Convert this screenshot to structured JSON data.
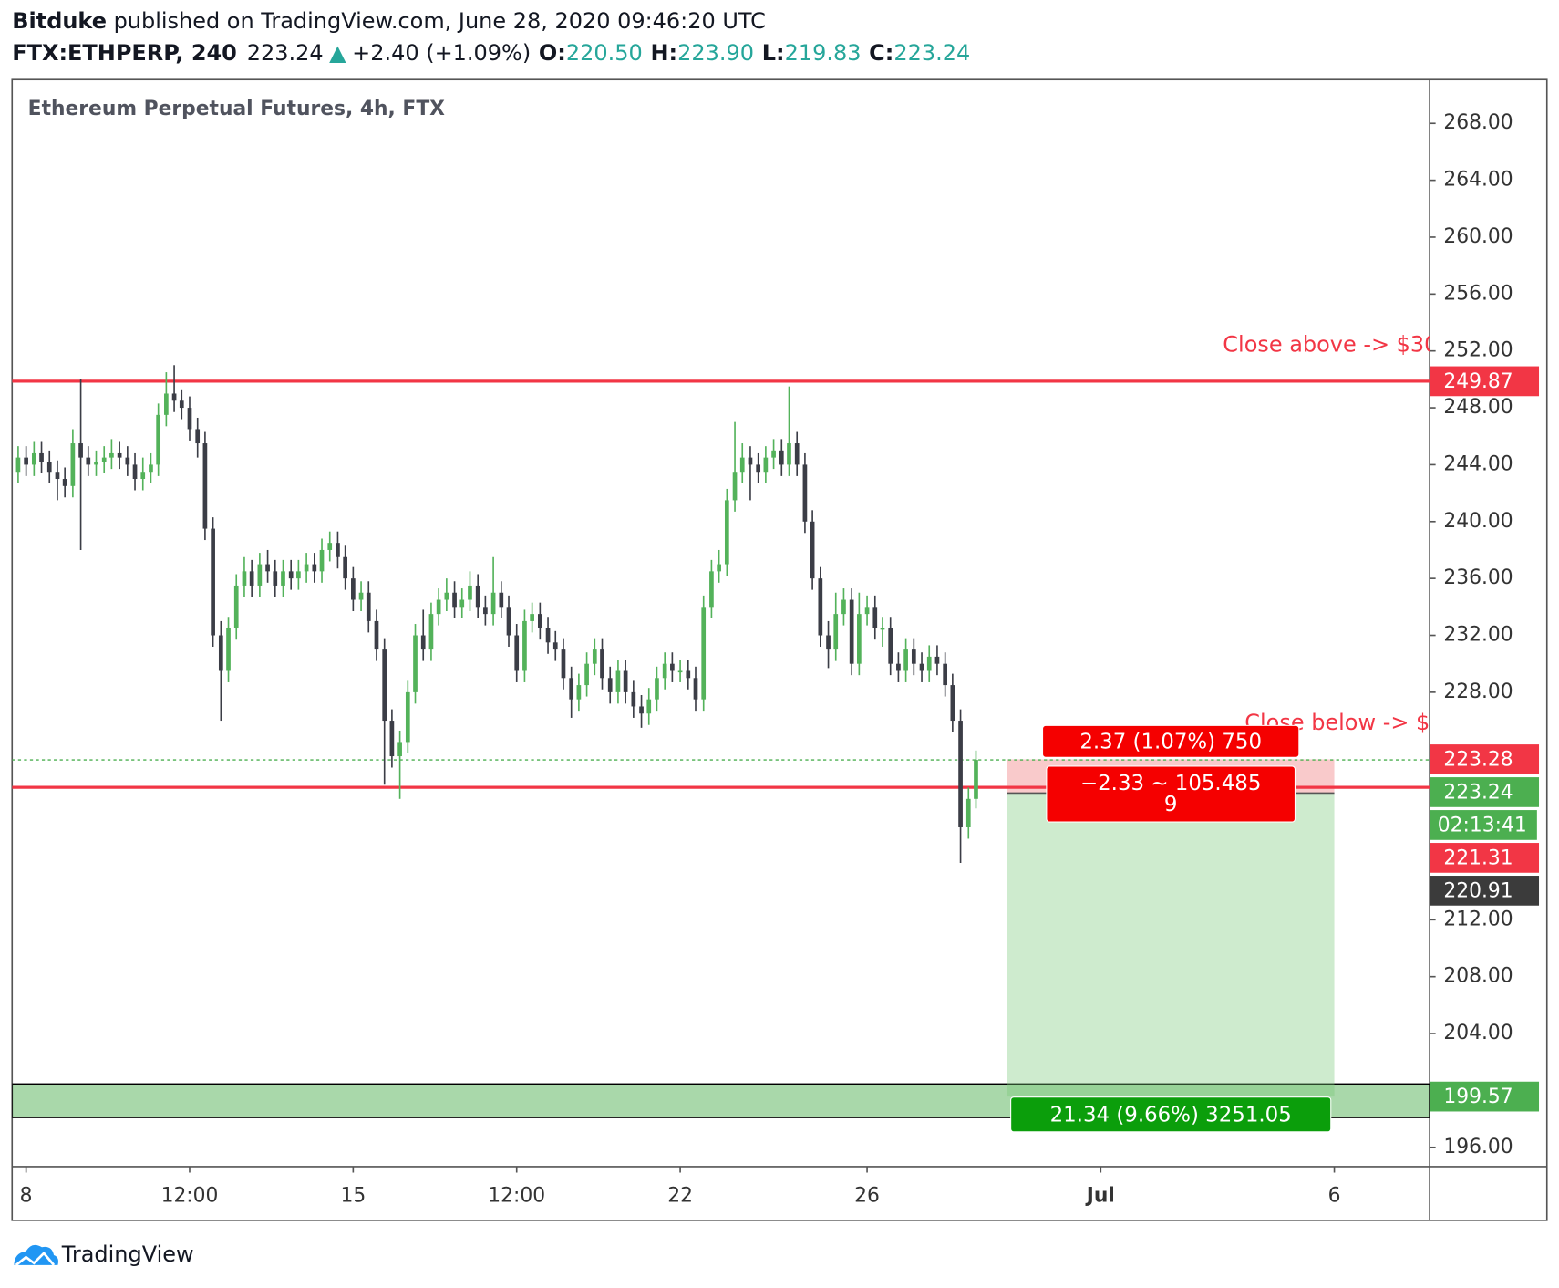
{
  "header": {
    "author": "Bitduke",
    "published": "published on TradingView.com, June 28, 2020 09:46:20 UTC",
    "symbol": "FTX:ETHPERP, 240",
    "last": "223.24",
    "arrow": "▲",
    "change": "+2.40 (+1.09%)",
    "o_label": "O:",
    "o": "220.50",
    "h_label": "H:",
    "h": "223.90",
    "l_label": "L:",
    "l": "219.83",
    "c_label": "C:",
    "c": "223.24"
  },
  "footer": "TradingView",
  "chart_data": {
    "type": "candlestick",
    "title": "Ethereum Perpetual Futures, 4h, FTX",
    "up_color": "#53b25a",
    "down_color": "#3b3d46",
    "x": [
      7.83,
      8,
      8.17,
      8.33,
      8.5,
      8.67,
      8.83,
      9,
      9.17,
      9.33,
      9.5,
      9.67,
      9.83,
      10,
      10.17,
      10.33,
      10.5,
      10.67,
      10.83,
      11,
      11.17,
      11.33,
      11.5,
      11.67,
      11.83,
      12,
      12.17,
      12.33,
      12.5,
      12.67,
      12.83,
      13,
      13.17,
      13.33,
      13.5,
      13.67,
      13.83,
      14,
      14.17,
      14.33,
      14.5,
      14.67,
      14.83,
      15,
      15.17,
      15.33,
      15.5,
      15.67,
      15.83,
      16,
      16.17,
      16.33,
      16.5,
      16.67,
      16.83,
      17,
      17.17,
      17.33,
      17.5,
      17.67,
      17.83,
      18,
      18.17,
      18.33,
      18.5,
      18.67,
      18.83,
      19,
      19.17,
      19.33,
      19.5,
      19.67,
      19.83,
      20,
      20.17,
      20.33,
      20.5,
      20.67,
      20.83,
      21,
      21.17,
      21.33,
      21.5,
      21.67,
      21.83,
      22,
      22.17,
      22.33,
      22.5,
      22.67,
      22.83,
      23,
      23.17,
      23.33,
      23.5,
      23.67,
      23.83,
      24,
      24.17,
      24.33,
      24.5,
      24.67,
      24.83,
      25,
      25.17,
      25.33,
      25.5,
      25.67,
      25.83,
      26,
      26.17,
      26.33,
      26.5,
      26.67,
      26.83,
      27,
      27.17,
      27.33,
      27.5,
      27.67,
      27.83,
      28,
      28.17,
      28.33
    ],
    "open": [
      243.5,
      244.5,
      244,
      244.8,
      244.2,
      243.5,
      243,
      242.5,
      245.5,
      244.5,
      244,
      244.2,
      244.5,
      244.8,
      244.5,
      244,
      243,
      243.5,
      244,
      247.5,
      249,
      248.5,
      248,
      246.5,
      245.5,
      239.5,
      232,
      229.5,
      232.5,
      235.5,
      236.5,
      235.5,
      237,
      236.5,
      235.5,
      236.5,
      236,
      236.5,
      237,
      236.5,
      238,
      238.5,
      237.5,
      236,
      234.5,
      235,
      233,
      231,
      226,
      223.5,
      224.5,
      228,
      232,
      231,
      233.5,
      234.5,
      235,
      234,
      234.5,
      235.5,
      234,
      233.5,
      235,
      234,
      232,
      229.5,
      233,
      233.5,
      232.5,
      231.5,
      231,
      229,
      227.5,
      228.5,
      230,
      231,
      229,
      228,
      229.5,
      228,
      227,
      226.5,
      227.5,
      229,
      230,
      229.5,
      229.5,
      229,
      227.5,
      234,
      236.5,
      237,
      241.5,
      243.5,
      244.5,
      244,
      243.5,
      244.5,
      245,
      244,
      245.5,
      244,
      240,
      236,
      232,
      231,
      233.5,
      234.5,
      230,
      233.5,
      234,
      232.5,
      232.5,
      230,
      229.5,
      231,
      230,
      229.5,
      230.5,
      230,
      228.5,
      226,
      218.5,
      220.5
    ],
    "high": [
      245.3,
      245.3,
      245.6,
      245.6,
      245,
      244.3,
      243.8,
      246.5,
      250,
      245.3,
      245,
      245.3,
      245.8,
      245.6,
      245.3,
      244.8,
      244.5,
      244.8,
      248.3,
      250.5,
      251,
      249.3,
      248.8,
      247.3,
      246.3,
      240.3,
      233,
      233.3,
      236.3,
      237.5,
      237.3,
      237.8,
      238,
      237.3,
      237.3,
      237.3,
      237.3,
      237.8,
      237.8,
      238.8,
      239.3,
      239.3,
      238.3,
      236.8,
      235.8,
      235.8,
      233.8,
      231.8,
      226.8,
      225.3,
      228.8,
      232.8,
      233.8,
      234.3,
      235.3,
      236,
      235.8,
      235.3,
      236.5,
      236.3,
      234.8,
      237.5,
      235.8,
      234.8,
      232.8,
      233.8,
      234.3,
      234.3,
      233.3,
      232.3,
      231.8,
      229.8,
      229.3,
      230.8,
      231.8,
      231.8,
      229.8,
      230.3,
      230.3,
      228.8,
      227.8,
      228.3,
      229.8,
      230.8,
      230.8,
      230.3,
      230.3,
      229.8,
      234.8,
      237.3,
      238,
      242.3,
      247,
      245.5,
      245.3,
      244.8,
      245.3,
      245.8,
      245.8,
      249.5,
      246.3,
      244.8,
      240.8,
      236.8,
      233,
      235,
      235.3,
      235.3,
      235,
      234.8,
      234.8,
      233.3,
      233.3,
      230.8,
      231.8,
      231.8,
      230.8,
      231.3,
      231.3,
      230.8,
      229.3,
      226.8,
      221.3,
      223.9
    ],
    "low": [
      242.7,
      243.2,
      243.2,
      243.4,
      242.7,
      241.5,
      241.7,
      241.7,
      238,
      243.2,
      243.2,
      243.4,
      243.7,
      243.7,
      243.2,
      242.2,
      242.2,
      242.7,
      243.2,
      246.7,
      247.7,
      247.2,
      245.7,
      244.5,
      238.7,
      231.2,
      226,
      228.7,
      231.7,
      234.7,
      234.7,
      234.7,
      235.7,
      234.7,
      234.7,
      235.2,
      235.2,
      235.7,
      235.7,
      235.7,
      237.2,
      236.7,
      235.2,
      233.7,
      233.7,
      232.2,
      230.2,
      221.5,
      222.7,
      220.5,
      223.7,
      227.2,
      230.2,
      230.2,
      232.7,
      233.7,
      233.2,
      233.2,
      233.7,
      233.2,
      232.7,
      232.7,
      233.2,
      231.2,
      228.7,
      228.7,
      232.2,
      231.7,
      230.7,
      230.2,
      228.2,
      226.2,
      226.7,
      227.7,
      229.2,
      228.2,
      227.2,
      227.2,
      227.2,
      226.2,
      225.5,
      225.7,
      226.7,
      228.2,
      228.7,
      228.7,
      228.2,
      226.7,
      226.7,
      233.2,
      235.7,
      236.2,
      240.7,
      242.7,
      241.5,
      242.7,
      242.7,
      243.7,
      243.2,
      243.2,
      243.2,
      239.2,
      235.2,
      231.2,
      229.7,
      230.2,
      232.7,
      229.2,
      229.2,
      232.7,
      231.7,
      231.2,
      229.2,
      228.7,
      228.7,
      229.2,
      228.7,
      228.7,
      229.2,
      227.7,
      225.2,
      216,
      217.7,
      219.83
    ],
    "close": [
      244.5,
      244,
      244.8,
      244.2,
      243.5,
      243,
      242.5,
      245.5,
      244.5,
      244,
      244.2,
      244.5,
      244.8,
      244.5,
      244,
      243,
      243.5,
      244,
      247.5,
      249,
      248.5,
      248,
      246.5,
      245.5,
      239.5,
      232,
      229.5,
      232.5,
      235.5,
      236.5,
      235.5,
      237,
      236.5,
      235.5,
      236.5,
      236,
      236.5,
      237,
      236.5,
      238,
      238.5,
      237.5,
      236,
      234.5,
      235,
      233,
      231,
      226,
      223.5,
      224.5,
      228,
      232,
      231,
      233.5,
      234.5,
      235,
      234,
      234.5,
      235.5,
      234,
      233.5,
      235,
      234,
      232,
      229.5,
      233,
      233.5,
      232.5,
      231.5,
      231,
      229,
      227.5,
      228.5,
      230,
      231,
      229,
      228,
      229.5,
      228,
      227,
      226.5,
      227.5,
      229,
      230,
      229.5,
      229.5,
      229,
      227.5,
      234,
      236.5,
      237,
      241.5,
      243.5,
      244.5,
      244,
      243.5,
      244.5,
      245,
      244,
      245.5,
      244,
      240,
      236,
      232,
      231,
      233.5,
      234.5,
      230,
      233.5,
      234,
      232.5,
      232.5,
      230,
      229.5,
      231,
      230,
      229.5,
      230.5,
      230,
      228.5,
      226,
      218.5,
      220.5,
      223.24
    ],
    "xlim": [
      7.7,
      38.04
    ],
    "xticks": [
      8,
      {
        "value": 11.5,
        "label": "12:00"
      },
      15,
      {
        "value": 18.5,
        "label": "12:00"
      },
      22,
      26,
      {
        "value": 31,
        "label": "Jul"
      },
      {
        "value": 36,
        "label": "6"
      }
    ],
    "ylim": [
      194.64,
      271.08
    ],
    "yticks": [
      {
        "value": 196,
        "label": "196.00"
      },
      {
        "value": 204,
        "label": "204.00"
      },
      {
        "value": 208,
        "label": "208.00"
      },
      {
        "value": 212,
        "label": "212.00"
      },
      {
        "value": 228,
        "label": "228.00"
      },
      {
        "value": 232,
        "label": "232.00"
      },
      {
        "value": 236,
        "label": "236.00"
      },
      {
        "value": 240,
        "label": "240.00"
      },
      {
        "value": 244,
        "label": "244.00"
      },
      {
        "value": 248,
        "label": "248.00"
      },
      {
        "value": 252,
        "label": "252.00"
      },
      {
        "value": 256,
        "label": "256.00"
      },
      {
        "value": 260,
        "label": "260.00"
      },
      {
        "value": 264,
        "label": "264.00"
      },
      {
        "value": 268,
        "label": "268.00"
      }
    ],
    "hlines": [
      {
        "value": 249.87,
        "color": "#f23645"
      },
      {
        "value": 221.31,
        "color": "#f23645"
      }
    ],
    "current_price": {
      "value": 223.24,
      "color": "#4caf50"
    },
    "zone": {
      "low": 198.1,
      "high": 200.45,
      "color": "#a9d8aa"
    },
    "position": {
      "start": 29,
      "end": 36,
      "entry": 220.91,
      "stop": 223.28,
      "target": 199.57,
      "stop_label": "2.37 (1.07%) 750",
      "entry_label": [
        "−2.33 ~ 105.485",
        "9"
      ],
      "target_label": "21.34 (9.66%) 3251.05"
    },
    "annotations": [
      {
        "text": "Close above -> $30",
        "value": 252.4
      },
      {
        "text": "Close below -> $",
        "value": 225.8
      }
    ],
    "price_tags": [
      {
        "value": 249.87,
        "color": "#f23645"
      },
      {
        "value": 223.28,
        "color": "#f23645"
      },
      {
        "value": 223.24,
        "color": "#4caf50"
      },
      {
        "label": "02:13:41",
        "color": "#4caf50"
      },
      {
        "value": 221.31,
        "color": "#f23645"
      },
      {
        "value": 220.91,
        "color": "#3b3b3b"
      },
      {
        "value": 199.57,
        "color": "#4caf50"
      }
    ]
  }
}
